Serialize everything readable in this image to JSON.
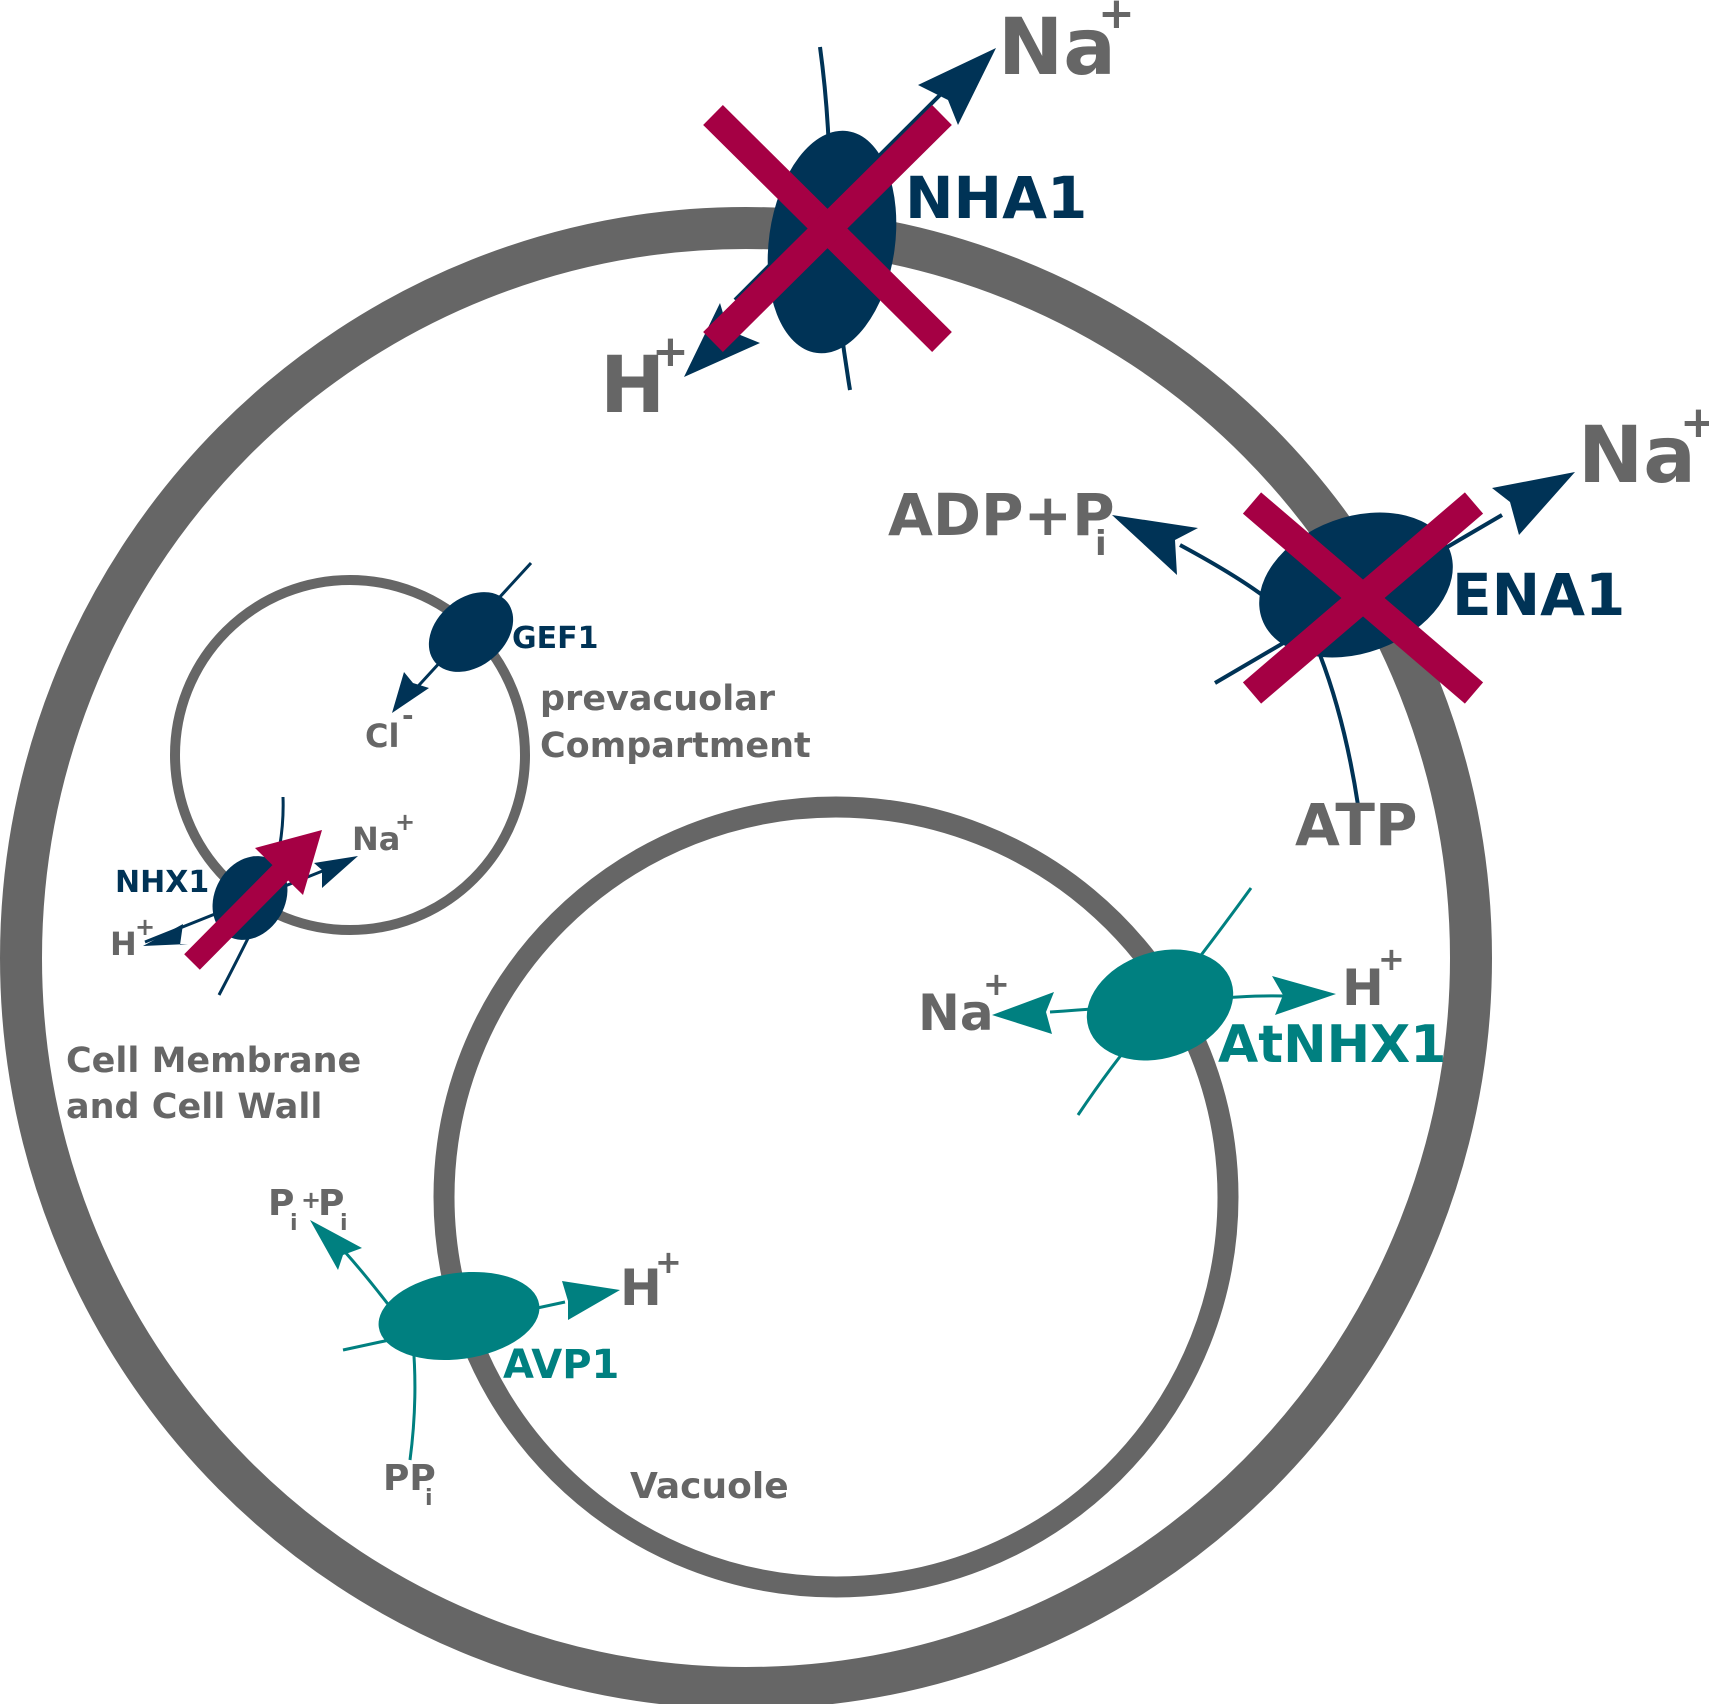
{
  "colors": {
    "membrane": "#666666",
    "navy": "#003356",
    "teal": "#008080",
    "crimson": "#a50044",
    "text_grey": "#666666"
  },
  "proteins": {
    "nha1": {
      "label": "NHA1",
      "status": "knocked-out"
    },
    "ena1": {
      "label": "ENA1",
      "status": "knocked-out"
    },
    "gef1": {
      "label": "GEF1"
    },
    "nhx1": {
      "label": "NHX1",
      "status": "overexpressed"
    },
    "atnhx1": {
      "label": "AtNHX1"
    },
    "avp1": {
      "label": "AVP1"
    }
  },
  "ions": {
    "na": "Na",
    "h": "H",
    "cl": "Cl",
    "plus": "+",
    "minus": "-"
  },
  "metabolites": {
    "adp_pi": "ADP+P",
    "atp": "ATP",
    "pi_plus_pi_a": "P",
    "pi_plus_pi_plus": "+",
    "pi_plus_pi_b": "P",
    "ppi": "PP",
    "sub_i": "i"
  },
  "compartments": {
    "prevacuolar_line1": "prevacuolar",
    "prevacuolar_line2": "Compartment",
    "cell_line1": "Cell Membrane",
    "cell_line2": "and Cell Wall",
    "vacuole": "Vacuole"
  }
}
